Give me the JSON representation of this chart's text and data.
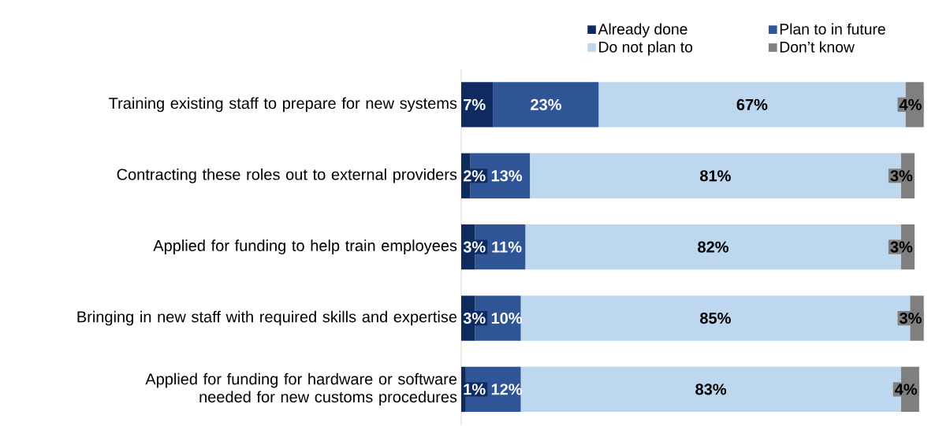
{
  "chart_data": {
    "type": "bar",
    "orientation": "horizontal",
    "stacked": true,
    "legend": "top right",
    "categories": [
      "Training existing staff to prepare for new systems",
      "Contracting these roles out to external providers",
      "Applied for funding to help train employees",
      "Bringing in new staff with required skills and expertise",
      "Applied for funding for hardware or software needed for new customs procedures"
    ],
    "series": [
      {
        "name": "Already done",
        "color": "#0e2a5e",
        "values": [
          7,
          2,
          3,
          3,
          1
        ],
        "value_labels": [
          "7%",
          "2%",
          "3%",
          "3%",
          "1%"
        ]
      },
      {
        "name": "Plan to in future",
        "color": "#2f5597",
        "values": [
          23,
          13,
          11,
          10,
          12
        ],
        "value_labels": [
          "23%",
          "13%",
          "11%",
          "10%",
          "12%"
        ]
      },
      {
        "name": "Do not plan to",
        "color": "#bdd7ee",
        "values": [
          67,
          81,
          82,
          85,
          83
        ],
        "value_labels": [
          "67%",
          "81%",
          "82%",
          "85%",
          "83%"
        ]
      },
      {
        "name": "Don’t know",
        "color": "#7f7f7f",
        "values": [
          4,
          3,
          3,
          3,
          4
        ],
        "value_labels": [
          "4%",
          "3%",
          "3%",
          "3%",
          "4%"
        ]
      }
    ]
  }
}
